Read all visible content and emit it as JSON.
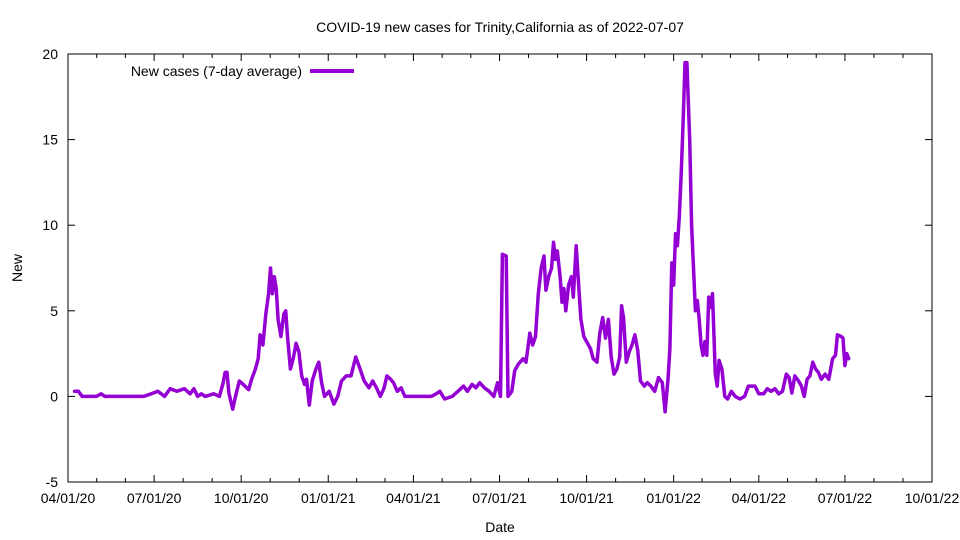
{
  "chart_data": {
    "type": "line",
    "title": "COVID-19 new cases for Trinity,California as of 2022-07-07",
    "xlabel": "Date",
    "ylabel": "New",
    "xlim": [
      "2020-04-01",
      "2022-10-01"
    ],
    "ylim": [
      -5,
      20
    ],
    "y_ticks": [
      -5,
      0,
      5,
      10,
      15,
      20
    ],
    "x_ticks": [
      "04/01/20",
      "07/01/20",
      "10/01/20",
      "01/01/21",
      "04/01/21",
      "07/01/21",
      "10/01/21",
      "01/01/22",
      "04/01/22",
      "07/01/22",
      "10/01/22"
    ],
    "x_tick_dates": [
      "2020-04-01",
      "2020-07-01",
      "2020-10-01",
      "2021-01-01",
      "2021-04-01",
      "2021-07-01",
      "2021-10-01",
      "2022-01-01",
      "2022-04-01",
      "2022-07-01",
      "2022-10-01"
    ],
    "grid": false,
    "legend_position": "top-left",
    "series": [
      {
        "name": "New cases (7-day average)",
        "color": "#9400d3",
        "points": [
          [
            "2020-04-08",
            0.3
          ],
          [
            "2020-04-12",
            0.3
          ],
          [
            "2020-04-16",
            0.0
          ],
          [
            "2020-05-01",
            0.0
          ],
          [
            "2020-05-06",
            0.15
          ],
          [
            "2020-05-10",
            0.0
          ],
          [
            "2020-06-20",
            0.0
          ],
          [
            "2020-06-28",
            0.15
          ],
          [
            "2020-07-05",
            0.3
          ],
          [
            "2020-07-12",
            0.0
          ],
          [
            "2020-07-18",
            0.45
          ],
          [
            "2020-07-25",
            0.3
          ],
          [
            "2020-08-02",
            0.45
          ],
          [
            "2020-08-08",
            0.15
          ],
          [
            "2020-08-12",
            0.45
          ],
          [
            "2020-08-16",
            0.0
          ],
          [
            "2020-08-20",
            0.15
          ],
          [
            "2020-08-24",
            0.0
          ],
          [
            "2020-09-02",
            0.15
          ],
          [
            "2020-09-08",
            0.0
          ],
          [
            "2020-09-12",
            0.8
          ],
          [
            "2020-09-14",
            1.4
          ],
          [
            "2020-09-16",
            1.4
          ],
          [
            "2020-09-18",
            0.2
          ],
          [
            "2020-09-22",
            -0.75
          ],
          [
            "2020-09-25",
            0.0
          ],
          [
            "2020-09-29",
            0.9
          ],
          [
            "2020-10-05",
            0.6
          ],
          [
            "2020-10-09",
            0.4
          ],
          [
            "2020-10-12",
            1.0
          ],
          [
            "2020-10-16",
            1.6
          ],
          [
            "2020-10-19",
            2.2
          ],
          [
            "2020-10-21",
            3.6
          ],
          [
            "2020-10-24",
            3.0
          ],
          [
            "2020-10-27",
            4.8
          ],
          [
            "2020-10-30",
            6.0
          ],
          [
            "2020-11-01",
            7.5
          ],
          [
            "2020-11-03",
            6.0
          ],
          [
            "2020-11-05",
            7.0
          ],
          [
            "2020-11-07",
            6.3
          ],
          [
            "2020-11-09",
            4.5
          ],
          [
            "2020-11-12",
            3.5
          ],
          [
            "2020-11-15",
            4.8
          ],
          [
            "2020-11-17",
            5.0
          ],
          [
            "2020-11-19",
            3.5
          ],
          [
            "2020-11-22",
            1.6
          ],
          [
            "2020-11-25",
            2.2
          ],
          [
            "2020-11-28",
            3.1
          ],
          [
            "2020-12-01",
            2.6
          ],
          [
            "2020-12-04",
            1.2
          ],
          [
            "2020-12-07",
            0.7
          ],
          [
            "2020-12-09",
            1.0
          ],
          [
            "2020-12-12",
            -0.5
          ],
          [
            "2020-12-15",
            0.9
          ],
          [
            "2020-12-19",
            1.6
          ],
          [
            "2020-12-22",
            2.0
          ],
          [
            "2020-12-25",
            0.8
          ],
          [
            "2020-12-28",
            0.0
          ],
          [
            "2021-01-02",
            0.3
          ],
          [
            "2021-01-07",
            -0.45
          ],
          [
            "2021-01-11",
            0.0
          ],
          [
            "2021-01-15",
            0.9
          ],
          [
            "2021-01-20",
            1.2
          ],
          [
            "2021-01-25",
            1.2
          ],
          [
            "2021-01-30",
            2.3
          ],
          [
            "2021-02-03",
            1.7
          ],
          [
            "2021-02-08",
            0.9
          ],
          [
            "2021-02-13",
            0.5
          ],
          [
            "2021-02-17",
            0.9
          ],
          [
            "2021-02-21",
            0.5
          ],
          [
            "2021-02-25",
            0.0
          ],
          [
            "2021-03-01",
            0.5
          ],
          [
            "2021-03-04",
            1.2
          ],
          [
            "2021-03-08",
            1.0
          ],
          [
            "2021-03-11",
            0.8
          ],
          [
            "2021-03-15",
            0.3
          ],
          [
            "2021-03-19",
            0.5
          ],
          [
            "2021-03-23",
            0.0
          ],
          [
            "2021-04-01",
            0.0
          ],
          [
            "2021-04-20",
            0.0
          ],
          [
            "2021-04-25",
            0.15
          ],
          [
            "2021-04-29",
            0.3
          ],
          [
            "2021-05-04",
            -0.15
          ],
          [
            "2021-05-12",
            0.0
          ],
          [
            "2021-05-18",
            0.3
          ],
          [
            "2021-05-24",
            0.6
          ],
          [
            "2021-05-28",
            0.3
          ],
          [
            "2021-06-02",
            0.7
          ],
          [
            "2021-06-06",
            0.5
          ],
          [
            "2021-06-10",
            0.8
          ],
          [
            "2021-06-15",
            0.5
          ],
          [
            "2021-06-20",
            0.3
          ],
          [
            "2021-06-25",
            0.0
          ],
          [
            "2021-06-29",
            0.8
          ],
          [
            "2021-07-02",
            0.0
          ],
          [
            "2021-07-04",
            8.3
          ],
          [
            "2021-07-08",
            8.2
          ],
          [
            "2021-07-10",
            0.0
          ],
          [
            "2021-07-14",
            0.3
          ],
          [
            "2021-07-17",
            1.5
          ],
          [
            "2021-07-21",
            1.9
          ],
          [
            "2021-07-26",
            2.2
          ],
          [
            "2021-07-29",
            2.0
          ],
          [
            "2021-08-02",
            3.7
          ],
          [
            "2021-08-05",
            3.0
          ],
          [
            "2021-08-08",
            3.5
          ],
          [
            "2021-08-11",
            6.0
          ],
          [
            "2021-08-14",
            7.5
          ],
          [
            "2021-08-17",
            8.2
          ],
          [
            "2021-08-19",
            6.2
          ],
          [
            "2021-08-22",
            7.0
          ],
          [
            "2021-08-25",
            7.5
          ],
          [
            "2021-08-27",
            9.0
          ],
          [
            "2021-08-29",
            8.0
          ],
          [
            "2021-08-31",
            8.5
          ],
          [
            "2021-09-03",
            7.0
          ],
          [
            "2021-09-05",
            5.5
          ],
          [
            "2021-09-07",
            6.3
          ],
          [
            "2021-09-09",
            5.0
          ],
          [
            "2021-09-12",
            6.5
          ],
          [
            "2021-09-15",
            7.0
          ],
          [
            "2021-09-17",
            5.8
          ],
          [
            "2021-09-20",
            8.8
          ],
          [
            "2021-09-22",
            7.0
          ],
          [
            "2021-09-25",
            4.5
          ],
          [
            "2021-09-28",
            3.5
          ],
          [
            "2021-10-02",
            3.1
          ],
          [
            "2021-10-05",
            2.8
          ],
          [
            "2021-10-08",
            2.2
          ],
          [
            "2021-10-12",
            2.0
          ],
          [
            "2021-10-15",
            3.7
          ],
          [
            "2021-10-18",
            4.6
          ],
          [
            "2021-10-21",
            3.4
          ],
          [
            "2021-10-24",
            4.5
          ],
          [
            "2021-10-27",
            2.3
          ],
          [
            "2021-10-30",
            1.3
          ],
          [
            "2021-11-02",
            1.6
          ],
          [
            "2021-11-05",
            2.3
          ],
          [
            "2021-11-07",
            5.3
          ],
          [
            "2021-11-09",
            4.6
          ],
          [
            "2021-11-12",
            2.0
          ],
          [
            "2021-11-15",
            2.6
          ],
          [
            "2021-11-18",
            3.0
          ],
          [
            "2021-11-21",
            3.6
          ],
          [
            "2021-11-24",
            2.7
          ],
          [
            "2021-11-27",
            0.9
          ],
          [
            "2021-12-01",
            0.6
          ],
          [
            "2021-12-04",
            0.8
          ],
          [
            "2021-12-08",
            0.6
          ],
          [
            "2021-12-12",
            0.3
          ],
          [
            "2021-12-16",
            1.1
          ],
          [
            "2021-12-20",
            0.8
          ],
          [
            "2021-12-23",
            -0.9
          ],
          [
            "2021-12-26",
            1.0
          ],
          [
            "2021-12-28",
            2.8
          ],
          [
            "2021-12-30",
            7.8
          ],
          [
            "2022-01-01",
            6.5
          ],
          [
            "2022-01-03",
            9.5
          ],
          [
            "2022-01-05",
            8.8
          ],
          [
            "2022-01-07",
            10.5
          ],
          [
            "2022-01-09",
            13.0
          ],
          [
            "2022-01-11",
            16.0
          ],
          [
            "2022-01-13",
            19.5
          ],
          [
            "2022-01-15",
            19.5
          ],
          [
            "2022-01-18",
            15.0
          ],
          [
            "2022-01-20",
            10.0
          ],
          [
            "2022-01-22",
            7.5
          ],
          [
            "2022-01-24",
            5.0
          ],
          [
            "2022-01-26",
            5.6
          ],
          [
            "2022-01-28",
            4.5
          ],
          [
            "2022-01-30",
            3.0
          ],
          [
            "2022-02-01",
            2.4
          ],
          [
            "2022-02-03",
            3.2
          ],
          [
            "2022-02-05",
            2.4
          ],
          [
            "2022-02-07",
            5.8
          ],
          [
            "2022-02-09",
            5.2
          ],
          [
            "2022-02-11",
            6.0
          ],
          [
            "2022-02-14",
            1.3
          ],
          [
            "2022-02-16",
            0.6
          ],
          [
            "2022-02-18",
            2.1
          ],
          [
            "2022-02-21",
            1.6
          ],
          [
            "2022-02-24",
            0.0
          ],
          [
            "2022-02-27",
            -0.15
          ],
          [
            "2022-03-03",
            0.3
          ],
          [
            "2022-03-07",
            0.0
          ],
          [
            "2022-03-12",
            -0.15
          ],
          [
            "2022-03-17",
            0.0
          ],
          [
            "2022-03-21",
            0.6
          ],
          [
            "2022-03-28",
            0.6
          ],
          [
            "2022-04-01",
            0.15
          ],
          [
            "2022-04-06",
            0.15
          ],
          [
            "2022-04-10",
            0.45
          ],
          [
            "2022-04-14",
            0.3
          ],
          [
            "2022-04-18",
            0.45
          ],
          [
            "2022-04-22",
            0.15
          ],
          [
            "2022-04-26",
            0.3
          ],
          [
            "2022-04-30",
            1.3
          ],
          [
            "2022-05-03",
            1.1
          ],
          [
            "2022-05-06",
            0.2
          ],
          [
            "2022-05-09",
            1.2
          ],
          [
            "2022-05-13",
            0.9
          ],
          [
            "2022-05-16",
            0.6
          ],
          [
            "2022-05-19",
            0.0
          ],
          [
            "2022-05-22",
            1.0
          ],
          [
            "2022-05-25",
            1.2
          ],
          [
            "2022-05-28",
            2.0
          ],
          [
            "2022-05-31",
            1.6
          ],
          [
            "2022-06-03",
            1.4
          ],
          [
            "2022-06-06",
            1.0
          ],
          [
            "2022-06-10",
            1.3
          ],
          [
            "2022-06-14",
            1.0
          ],
          [
            "2022-06-18",
            2.2
          ],
          [
            "2022-06-21",
            2.4
          ],
          [
            "2022-06-23",
            3.6
          ],
          [
            "2022-06-27",
            3.5
          ],
          [
            "2022-06-29",
            3.4
          ],
          [
            "2022-07-01",
            1.8
          ],
          [
            "2022-07-03",
            2.5
          ],
          [
            "2022-07-05",
            2.2
          ]
        ]
      }
    ]
  }
}
